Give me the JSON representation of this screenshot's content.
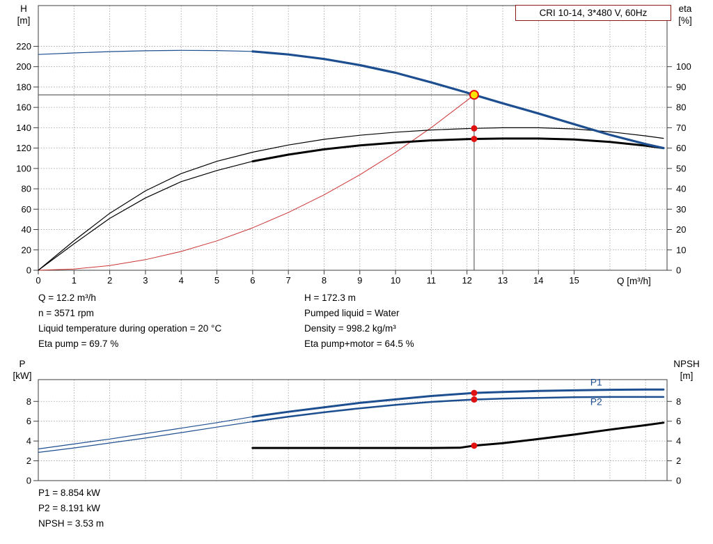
{
  "title_box": {
    "label": "CRI 10-14, 3*480 V, 60Hz"
  },
  "colors": {
    "curve_blue": "#1d4e8f",
    "curve_black": "#000000",
    "system_red": "#cc3333",
    "marker_red": "#e01010",
    "duty_point_fill": "#ffe400",
    "title_border": "#8b1a1a"
  },
  "chart_data": [
    {
      "id": "head-efficiency",
      "type": "line",
      "x_axis": {
        "label": "Q [m³/h]",
        "min": 0,
        "max": 17.6,
        "ticks": [
          0,
          1,
          2,
          3,
          4,
          5,
          6,
          7,
          8,
          9,
          10,
          11,
          12,
          13,
          14,
          15
        ]
      },
      "y_left": {
        "label": "H",
        "unit": "[m]",
        "min": 0,
        "max": 260,
        "ticks": [
          0,
          20,
          40,
          60,
          80,
          100,
          120,
          140,
          160,
          180,
          200,
          220
        ]
      },
      "y_right": {
        "label": "eta",
        "unit": "[%]",
        "min": 0,
        "max": 130,
        "ticks": [
          0,
          10,
          20,
          30,
          40,
          50,
          60,
          70,
          80,
          90,
          100
        ]
      },
      "series": [
        {
          "name": "system-curve",
          "axis": "left",
          "color": "#cc3333",
          "width": 1,
          "x": [
            0,
            1,
            2,
            3,
            4,
            5,
            6,
            7,
            8,
            9,
            10,
            11,
            12,
            12.2
          ],
          "v": [
            0,
            1.2,
            4.6,
            10.4,
            18.5,
            28.9,
            41.7,
            56.7,
            74.1,
            93.8,
            115.8,
            140.1,
            166.8,
            172.3
          ]
        },
        {
          "name": "eta-pump-curve",
          "axis": "right",
          "color": "#000000",
          "width": 1.2,
          "x": [
            0,
            1,
            2,
            3,
            4,
            5,
            6,
            7,
            8,
            9,
            10,
            11,
            12,
            12.2,
            13,
            14,
            15,
            16,
            17,
            17.5
          ],
          "v": [
            0,
            14.5,
            28,
            39,
            47.5,
            53.5,
            58,
            61.5,
            64.3,
            66.3,
            67.8,
            68.9,
            69.6,
            69.7,
            70,
            70,
            69.4,
            68,
            66,
            64.8
          ]
        },
        {
          "name": "eta-pump-motor-low-range",
          "axis": "right",
          "color": "#000000",
          "width": 1.2,
          "x": [
            0,
            1,
            2,
            3,
            4,
            5,
            6
          ],
          "v": [
            0,
            13,
            25.5,
            35.5,
            43.5,
            49,
            53.5
          ]
        },
        {
          "name": "eta-pump-motor-curve",
          "axis": "right",
          "color": "#000000",
          "width": 3,
          "x": [
            6,
            7,
            8,
            9,
            10,
            11,
            12,
            12.2,
            13,
            14,
            15,
            16,
            17,
            17.5
          ],
          "v": [
            53.5,
            56.8,
            59.4,
            61.3,
            62.7,
            63.8,
            64.4,
            64.5,
            64.7,
            64.7,
            64.2,
            63,
            61.2,
            60
          ]
        },
        {
          "name": "head-curve-low-range",
          "axis": "left",
          "color": "#1d4e8f",
          "width": 1.2,
          "x": [
            0,
            1,
            2,
            3,
            4,
            5,
            6
          ],
          "v": [
            212,
            213.5,
            214.8,
            215.6,
            216,
            215.8,
            215
          ]
        },
        {
          "name": "head-curve",
          "axis": "left",
          "color": "#1d4e8f",
          "width": 3.2,
          "x": [
            6,
            7,
            8,
            9,
            10,
            11,
            12,
            12.2,
            13,
            14,
            15,
            16,
            17,
            17.5
          ],
          "v": [
            215,
            212,
            207.5,
            201.5,
            194,
            184.5,
            174.5,
            172.3,
            164,
            154,
            143.5,
            133,
            124,
            120
          ]
        }
      ],
      "crosshair": {
        "x": 12.2,
        "v": 172.3
      },
      "markers": [
        {
          "type": "duty",
          "x": 12.2,
          "v": 172.3,
          "axis": "left"
        },
        {
          "type": "dot",
          "x": 12.2,
          "v": 69.7,
          "axis": "right"
        },
        {
          "type": "dot",
          "x": 12.2,
          "v": 64.5,
          "axis": "right"
        }
      ]
    },
    {
      "id": "power-npsh",
      "type": "line",
      "x_axis": {
        "label": "",
        "min": 0,
        "max": 17.6,
        "ticks": []
      },
      "y_left": {
        "label": "P",
        "unit": "[kW]",
        "min": 0,
        "max": 10.2,
        "ticks": [
          0,
          2,
          4,
          6,
          8
        ]
      },
      "y_right": {
        "label": "NPSH",
        "unit": "[m]",
        "min": 0,
        "max": 10.2,
        "ticks": [
          0,
          2,
          4,
          6,
          8
        ]
      },
      "series": [
        {
          "name": "p1-curve-low-range",
          "axis": "left",
          "color": "#1d4e8f",
          "width": 1.2,
          "x": [
            0,
            1,
            2,
            3,
            4,
            5,
            6
          ],
          "v": [
            3.2,
            3.7,
            4.2,
            4.75,
            5.3,
            5.85,
            6.45
          ]
        },
        {
          "name": "p1-curve",
          "axis": "left",
          "color": "#1d4e8f",
          "width": 3,
          "x": [
            6,
            7,
            8,
            9,
            10,
            11,
            12,
            12.2,
            13,
            14,
            15,
            16,
            17,
            17.5
          ],
          "v": [
            6.45,
            6.95,
            7.4,
            7.85,
            8.2,
            8.55,
            8.8,
            8.854,
            8.95,
            9.05,
            9.12,
            9.17,
            9.2,
            9.2
          ]
        },
        {
          "name": "p2-curve-low-range",
          "axis": "left",
          "color": "#1d4e8f",
          "width": 1.2,
          "x": [
            0,
            1,
            2,
            3,
            4,
            5,
            6
          ],
          "v": [
            2.85,
            3.3,
            3.8,
            4.3,
            4.85,
            5.4,
            5.95
          ]
        },
        {
          "name": "p2-curve",
          "axis": "left",
          "color": "#1d4e8f",
          "width": 2.5,
          "x": [
            6,
            7,
            8,
            9,
            10,
            11,
            12,
            12.2,
            13,
            14,
            15,
            16,
            17,
            17.5
          ],
          "v": [
            5.95,
            6.45,
            6.9,
            7.3,
            7.65,
            7.95,
            8.15,
            8.191,
            8.28,
            8.36,
            8.42,
            8.45,
            8.45,
            8.45
          ]
        },
        {
          "name": "npsh-curve",
          "axis": "right",
          "color": "#000000",
          "width": 3,
          "x": [
            6,
            7,
            8,
            9,
            10,
            11,
            11.8,
            12.2,
            13,
            14,
            15,
            16,
            17,
            17.5
          ],
          "v": [
            3.3,
            3.3,
            3.3,
            3.3,
            3.3,
            3.3,
            3.32,
            3.53,
            3.78,
            4.2,
            4.65,
            5.15,
            5.6,
            5.85
          ]
        }
      ],
      "inline_labels": [
        {
          "text": "P1",
          "x": 15.45,
          "v": 9.6,
          "axis": "left",
          "color": "#1d4e8f"
        },
        {
          "text": "P2",
          "x": 15.45,
          "v": 7.62,
          "axis": "left",
          "color": "#1d4e8f"
        }
      ],
      "markers": [
        {
          "type": "dot",
          "x": 12.2,
          "v": 8.854,
          "axis": "left"
        },
        {
          "type": "dot",
          "x": 12.2,
          "v": 8.191,
          "axis": "left"
        },
        {
          "type": "dot",
          "x": 12.2,
          "v": 3.53,
          "axis": "right"
        }
      ]
    }
  ],
  "readout_top": {
    "left": [
      "Q = 12.2 m³/h",
      "n = 3571 rpm",
      "Liquid temperature during operation = 20 °C",
      "Eta pump = 69.7 %"
    ],
    "right": [
      "H = 172.3 m",
      "Pumped liquid = Water",
      "Density = 998.2 kg/m³",
      "Eta pump+motor = 64.5 %"
    ]
  },
  "readout_bottom": [
    "P1 = 8.854 kW",
    "P2 = 8.191 kW",
    "NPSH = 3.53 m"
  ]
}
